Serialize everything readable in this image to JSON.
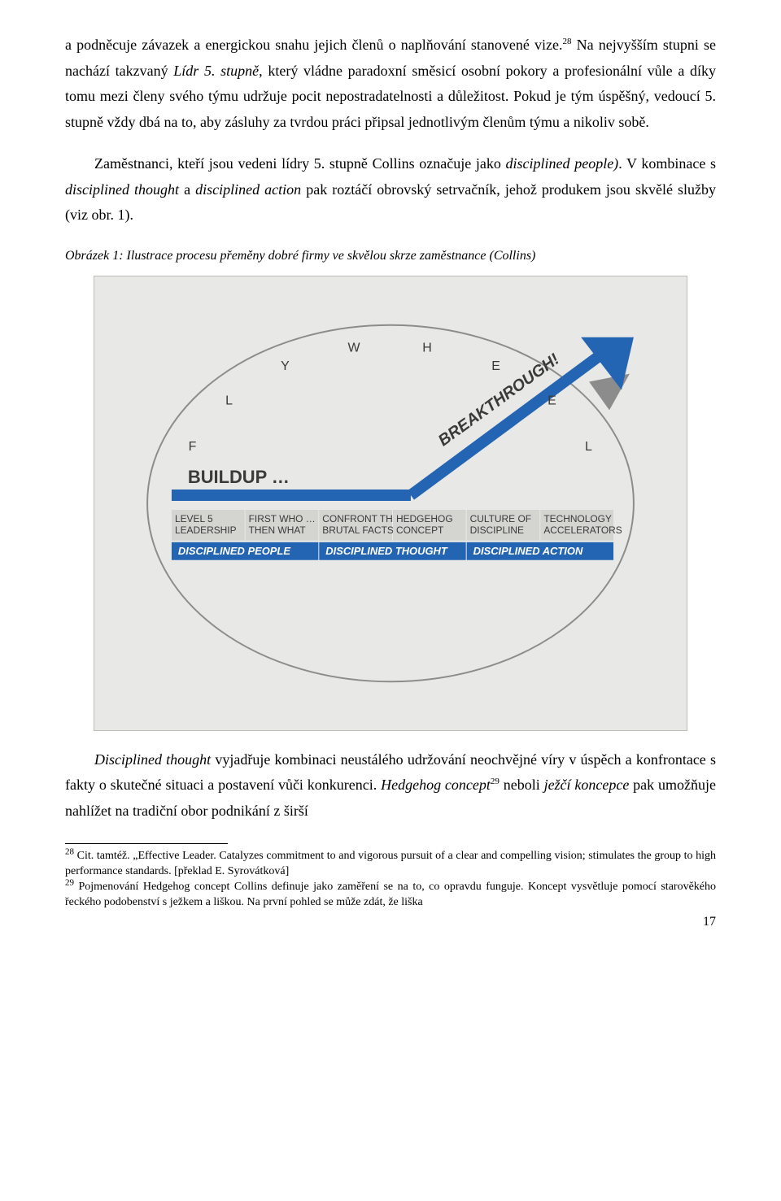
{
  "paragraphs": {
    "p1_part1": "a podněcuje závazek a energickou snahu jejich členů o naplňování stanovené vize.",
    "p1_sup": "28",
    "p1_part2": " Na nejvyšším stupni se nachází takzvaný ",
    "p1_ital": "Lídr 5. stupně",
    "p1_part3": ", který vládne paradoxní směsicí osobní pokory a profesionální vůle a díky tomu mezi členy svého týmu udržuje pocit nepostradatelnosti a důležitost. Pokud je tým úspěšný, vedoucí 5. stupně vždy dbá na to, aby zásluhy za tvrdou práci připsal jednotlivým členům týmu a nikoliv sobě.",
    "p2_part1": "Zaměstnanci, kteří jsou vedeni lídry 5. stupně Collins označuje jako ",
    "p2_ital1": "disciplined people)",
    "p2_part2": ". V kombinace s ",
    "p2_ital2": "disciplined thought",
    "p2_part3": " a ",
    "p2_ital3": "disciplined action",
    "p2_part4": " pak roztáčí obrovský setrvačník, jehož produkem jsou skvělé služby (viz obr. 1).",
    "figcap": "Obrázek 1: Ilustrace procesu přeměny dobré firmy ve skvělou skrze zaměstnance (Collins)",
    "p3_ital1": "Disciplined thought",
    "p3_part1": " vyjadřuje kombinaci neustálého udržování neochvějné víry v úspěch a konfrontace s fakty o skutečné situaci a postavení vůči konkurenci. ",
    "p3_ital2": "Hedgehog concept",
    "p3_sup": "29",
    "p3_part2": " neboli ",
    "p3_ital3": "ježčí koncepce",
    "p3_part3": " pak umožňuje nahlížet na tradiční obor podnikání z širší"
  },
  "figure": {
    "background_color": "#e8e8e6",
    "arc_color": "#8c8c8c",
    "axis_color": "#2465b3",
    "breakthrough_color": "#2465b3",
    "buildup_text": "BUILDUP …",
    "breakthrough_text": "BREAKTHROUGH!",
    "flywheel_letters": [
      "F",
      "L",
      "Y",
      "W",
      "H",
      "E",
      "E",
      "L"
    ],
    "top_row": [
      "LEVEL 5\nLEADERSHIP",
      "FIRST WHO …\nTHEN WHAT",
      "CONFRONT THE\nBRUTAL FACTS",
      "HEDGEHOG\nCONCEPT",
      "CULTURE OF\nDISCIPLINE",
      "TECHNOLOGY\nACCELERATORS"
    ],
    "top_row_bg": "#d4d4d1",
    "top_row_color": "#3a3a38",
    "bottom_row": [
      "DISCIPLINED PEOPLE",
      "DISCIPLINED THOUGHT",
      "DISCIPLINED ACTION"
    ],
    "bottom_row_bg": "#2465b3",
    "bottom_row_color": "#ffffff",
    "label_fontsize": 12,
    "buildup_fontsize": 22,
    "breakthrough_fontsize": 20,
    "flywheel_fontsize": 16
  },
  "footnotes": {
    "fn28_num": "28",
    "fn28": " Cit. tamtéž. „Effective Leader. Catalyzes commitment to and vigorous pursuit of a clear and compelling vision; stimulates the group to high performance standards. [překlad E. Syrovátková]",
    "fn29_num": "29",
    "fn29": " Pojmenování Hedgehog concept Collins definuje jako zaměření se na to, co opravdu funguje. Koncept vysvětluje pomocí starověkého řeckého podobenství s ježkem a liškou. Na první pohled se může zdát, že liška"
  },
  "page_number": "17"
}
